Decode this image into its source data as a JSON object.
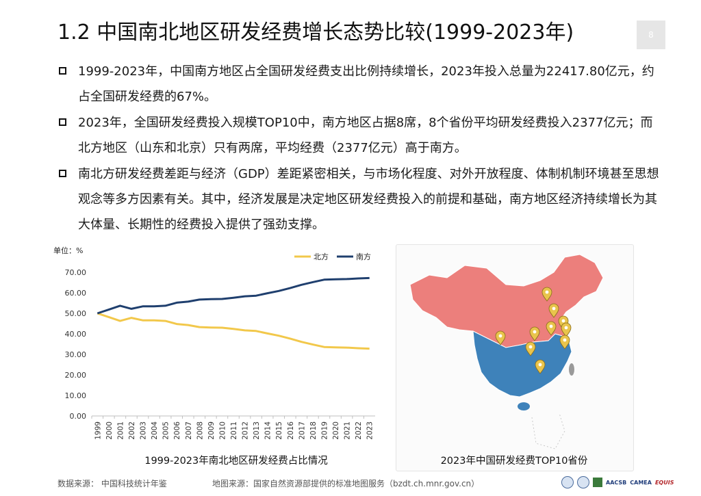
{
  "page": {
    "title": "1.2  中国南北地区研发经费增长态势比较(1999-2023年)",
    "page_number": "8"
  },
  "bullets": [
    "1999-2023年，中国南方地区占全国研发经费支出比例持续增长，2023年投入总量为22417.80亿元，约占全国研发经费的67%。",
    "2023年，全国研发经费投入规模TOP10中，南方地区占据8席，8个省份平均研发经费投入2377亿元；而北方地区（山东和北京）只有两席，平均经费（2377亿元）高于南方。",
    "南北方研发经费差距与经济（GDP）差距紧密相关，与市场化程度、对外开放程度、体制机制环境甚至思想观念等多方因素有关。其中，经济发展是决定地区研发经费投入的前提和基础，南方地区经济持续增长为其大体量、长期性的经费投入提供了强劲支撑。"
  ],
  "chart_data": {
    "type": "line",
    "title": "1999-2023年南北地区研发经费占比情况",
    "unit_label": "单位：%",
    "x": [
      "1999",
      "2000",
      "2001",
      "2002",
      "2003",
      "2004",
      "2005",
      "2006",
      "2007",
      "2008",
      "2009",
      "2010",
      "2011",
      "2012",
      "2013",
      "2014",
      "2015",
      "2016",
      "2017",
      "2018",
      "2019",
      "2020",
      "2021",
      "2022",
      "2023"
    ],
    "ylim": [
      0,
      70
    ],
    "yticks": [
      "0.00",
      "10.00",
      "20.00",
      "30.00",
      "40.00",
      "50.00",
      "60.00",
      "70.00"
    ],
    "grid": false,
    "legend_position": "top-right",
    "series": [
      {
        "name": "北方",
        "color": "#f2c84b",
        "values": [
          50.0,
          48.2,
          46.3,
          47.8,
          46.6,
          46.6,
          46.3,
          44.8,
          44.3,
          43.3,
          43.1,
          43.0,
          42.4,
          41.7,
          41.4,
          40.2,
          39.1,
          37.7,
          36.1,
          34.8,
          33.6,
          33.4,
          33.3,
          33.0,
          32.8
        ]
      },
      {
        "name": "南方",
        "color": "#1f3f6e",
        "values": [
          50.0,
          51.8,
          53.7,
          52.2,
          53.4,
          53.4,
          53.7,
          55.2,
          55.7,
          56.7,
          56.9,
          57.0,
          57.6,
          58.3,
          58.6,
          59.8,
          60.9,
          62.3,
          63.9,
          65.2,
          66.4,
          66.6,
          66.7,
          67.0,
          67.2
        ]
      }
    ]
  },
  "map": {
    "caption": "2023年中国研发经费TOP10省份",
    "north_color": "#ec7f7c",
    "south_color": "#3e82ba",
    "marker_color": "#e9c44c",
    "marker_icon": "location-pin-icon"
  },
  "footer": {
    "data_source": "数据来源：  中国科技统计年鉴",
    "map_source": "地图来源：国家自然资源部提供的标准地图服务（bzdt.ch.mnr.gov.cn）",
    "logo_aacsb": "AACSB",
    "logo_camea": "CAMEA",
    "logo_equis": "EQUIS"
  }
}
